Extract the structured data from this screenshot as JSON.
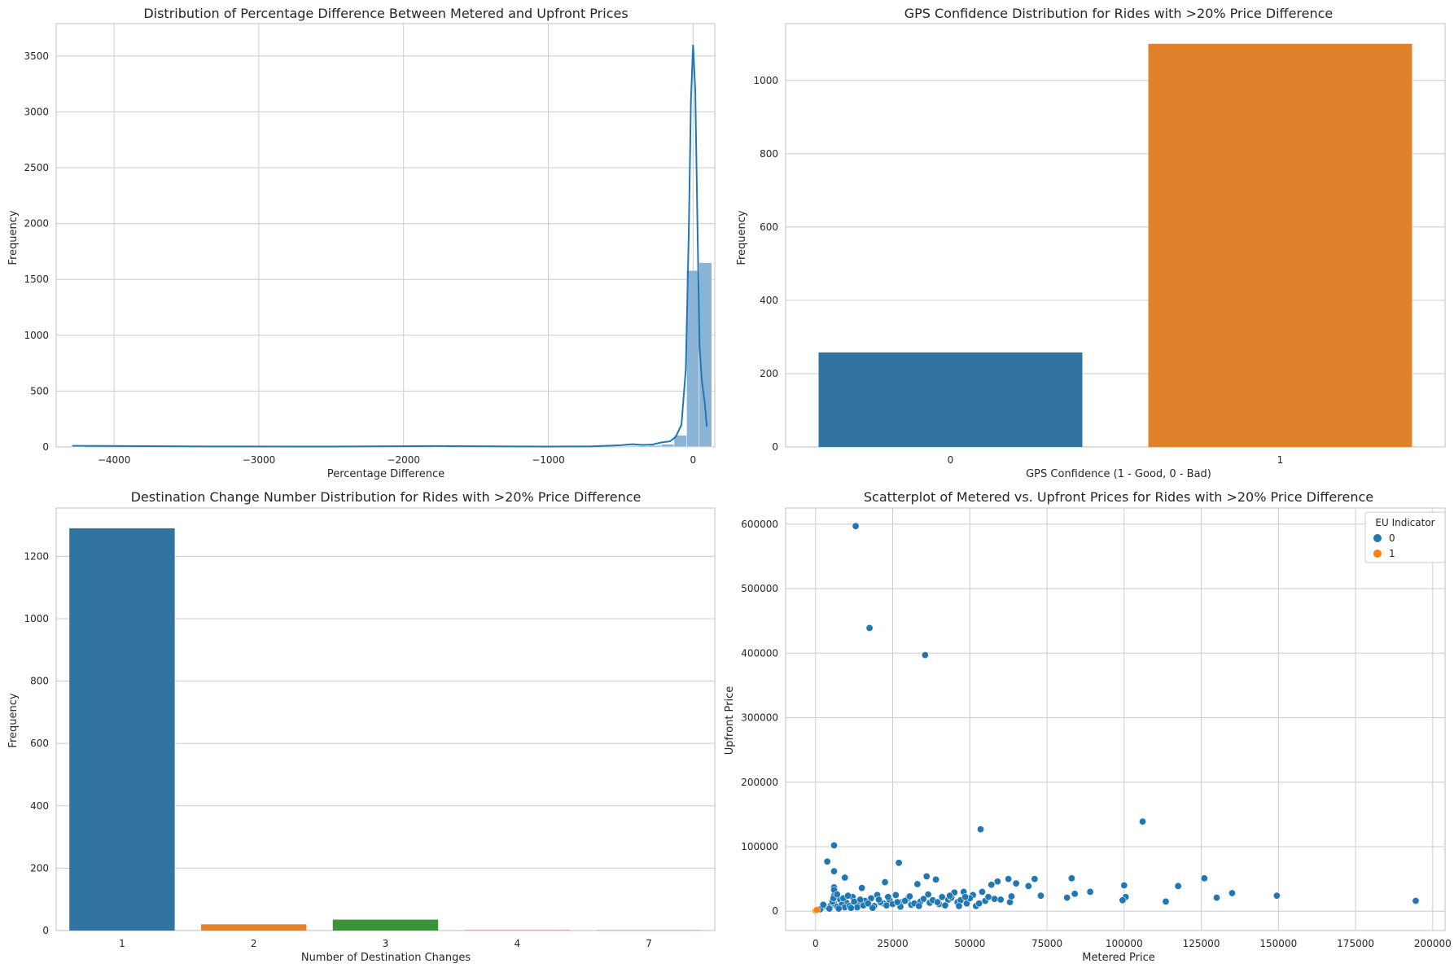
{
  "colors": {
    "blue": "#3274a1",
    "blue_dot": "#1f77b4",
    "orange": "#e1812c",
    "orange_dot": "#ff7f0e",
    "green": "#3a923a",
    "hist_fill": "#8bb3d6",
    "kde": "#1f77b4",
    "grid": "#cccccc"
  },
  "chart_data": [
    {
      "id": "hist",
      "type": "bar",
      "title": "Distribution of Percentage Difference Between Metered and Upfront Prices",
      "xlabel": "Percentage Difference",
      "ylabel": "Frequency",
      "xlim": [
        -4400,
        150
      ],
      "ylim": [
        0,
        3790
      ],
      "xticks": [
        -4000,
        -3000,
        -2000,
        -1000,
        0
      ],
      "xtick_labels": [
        "−4000",
        "−3000",
        "−2000",
        "−1000",
        "0"
      ],
      "yticks": [
        0,
        500,
        1000,
        1500,
        2000,
        2500,
        3000,
        3500
      ],
      "ytick_labels": [
        "0",
        "500",
        "1000",
        "1500",
        "2000",
        "2500",
        "3000",
        "3500"
      ],
      "bin_width": 87,
      "bins": [
        {
          "x": -4290,
          "v": 2
        },
        {
          "x": -1800,
          "v": 3
        },
        {
          "x": -900,
          "v": 4
        },
        {
          "x": -480,
          "v": 8
        },
        {
          "x": -393,
          "v": 10
        },
        {
          "x": -306,
          "v": 14
        },
        {
          "x": -219,
          "v": 25
        },
        {
          "x": -132,
          "v": 105
        },
        {
          "x": -45,
          "v": 1580
        },
        {
          "x": 42,
          "v": 1650
        }
      ],
      "kde": {
        "x": [
          -4290,
          -3500,
          -2500,
          -1800,
          -1000,
          -700,
          -500,
          -420,
          -350,
          -280,
          -220,
          -160,
          -120,
          -80,
          -50,
          -30,
          -15,
          0,
          15,
          30,
          45,
          60,
          80,
          95
        ],
        "y": [
          10,
          5,
          4,
          8,
          4,
          5,
          15,
          25,
          18,
          22,
          40,
          50,
          90,
          200,
          700,
          1900,
          3100,
          3600,
          3200,
          2000,
          900,
          600,
          400,
          180
        ]
      }
    },
    {
      "id": "gps",
      "type": "bar",
      "title": "GPS Confidence Distribution for Rides with >20% Price Difference",
      "xlabel": "GPS Confidence (1 - Good, 0 - Bad)",
      "ylabel": "Frequency",
      "ylim": [
        0,
        1155
      ],
      "yticks": [
        0,
        200,
        400,
        600,
        800,
        1000
      ],
      "ytick_labels": [
        "0",
        "200",
        "400",
        "600",
        "800",
        "1000"
      ],
      "categories": [
        "0",
        "1"
      ],
      "values": [
        258,
        1100
      ]
    },
    {
      "id": "dest",
      "type": "bar",
      "title": "Destination Change Number Distribution for Rides with >20% Price Difference",
      "xlabel": "Number of Destination Changes",
      "ylabel": "Frequency",
      "ylim": [
        0,
        1355
      ],
      "yticks": [
        0,
        200,
        400,
        600,
        800,
        1000,
        1200
      ],
      "ytick_labels": [
        "0",
        "200",
        "400",
        "600",
        "800",
        "1000",
        "1200"
      ],
      "categories": [
        "1",
        "2",
        "3",
        "4",
        "7"
      ],
      "values": [
        1290,
        20,
        35,
        1,
        1
      ]
    },
    {
      "id": "scatter",
      "type": "scatter",
      "title": "Scatterplot of Metered vs. Upfront Prices for Rides with >20% Price Difference",
      "xlabel": "Metered Price",
      "ylabel": "Upfront Price",
      "xlim": [
        -9700,
        204000
      ],
      "ylim": [
        -30000,
        625000
      ],
      "xticks": [
        0,
        25000,
        50000,
        75000,
        100000,
        125000,
        150000,
        175000,
        200000
      ],
      "xtick_labels": [
        "0",
        "25000",
        "50000",
        "75000",
        "100000",
        "125000",
        "150000",
        "175000",
        "200000"
      ],
      "yticks": [
        0,
        100000,
        200000,
        300000,
        400000,
        500000,
        600000
      ],
      "ytick_labels": [
        "0",
        "100000",
        "200000",
        "300000",
        "400000",
        "500000",
        "600000"
      ],
      "legend": {
        "title": "EU Indicator",
        "entries": [
          "0",
          "1"
        ],
        "placement": "top-right"
      },
      "series": [
        {
          "name": "0",
          "points": [
            [
              13000,
              597000
            ],
            [
              17500,
              439000
            ],
            [
              35500,
              397000
            ],
            [
              106000,
              139000
            ],
            [
              53500,
              127000
            ],
            [
              6000,
              102000
            ],
            [
              3800,
              77000
            ],
            [
              27000,
              75000
            ],
            [
              6000,
              62000
            ],
            [
              9500,
              52000
            ],
            [
              36000,
              54000
            ],
            [
              22500,
              45000
            ],
            [
              39000,
              49000
            ],
            [
              33000,
              42000
            ],
            [
              62500,
              50000
            ],
            [
              71000,
              50000
            ],
            [
              59000,
              46000
            ],
            [
              57000,
              41000
            ],
            [
              65000,
              43000
            ],
            [
              83000,
              51000
            ],
            [
              126000,
              51000
            ],
            [
              100000,
              40000
            ],
            [
              117500,
              39000
            ],
            [
              69000,
              39000
            ],
            [
              6000,
              37000
            ],
            [
              6500,
              29000
            ],
            [
              15000,
              36000
            ],
            [
              48000,
              30000
            ],
            [
              54000,
              30000
            ],
            [
              89000,
              30000
            ],
            [
              84000,
              27000
            ],
            [
              135000,
              28000
            ],
            [
              73000,
              24000
            ],
            [
              149500,
              24000
            ],
            [
              100500,
              22000
            ],
            [
              81500,
              21000
            ],
            [
              130000,
              21000
            ],
            [
              99500,
              17000
            ],
            [
              113500,
              15000
            ],
            [
              194500,
              16000
            ],
            [
              63000,
              14000
            ],
            [
              63500,
              23000
            ],
            [
              45000,
              29000
            ],
            [
              51000,
              25000
            ],
            [
              58000,
              19000
            ],
            [
              41000,
              22000
            ],
            [
              30000,
              20000
            ],
            [
              26000,
              25000
            ],
            [
              20000,
              25000
            ],
            [
              18000,
              20000
            ],
            [
              12000,
              22000
            ],
            [
              8000,
              18000
            ],
            [
              10000,
              13000
            ],
            [
              14000,
              11000
            ],
            [
              16000,
              16000
            ],
            [
              22000,
              12000
            ],
            [
              24000,
              17000
            ],
            [
              28000,
              14000
            ],
            [
              31000,
              10000
            ],
            [
              34000,
              15000
            ],
            [
              37000,
              13000
            ],
            [
              40000,
              11000
            ],
            [
              43000,
              18000
            ],
            [
              46000,
              14000
            ],
            [
              49000,
              12000
            ],
            [
              52000,
              8000
            ],
            [
              55000,
              16000
            ],
            [
              60000,
              18000
            ],
            [
              2000,
              5000
            ],
            [
              3000,
              8000
            ],
            [
              4000,
              6000
            ],
            [
              5000,
              9000
            ],
            [
              6000,
              12000
            ],
            [
              7000,
              7000
            ],
            [
              8500,
              10000
            ],
            [
              9500,
              6000
            ],
            [
              11000,
              8000
            ],
            [
              12500,
              15000
            ],
            [
              13500,
              6000
            ],
            [
              15500,
              9000
            ],
            [
              17000,
              12000
            ],
            [
              19000,
              8000
            ],
            [
              21000,
              14000
            ],
            [
              23000,
              9000
            ],
            [
              25000,
              11000
            ],
            [
              27500,
              7000
            ],
            [
              29000,
              16000
            ],
            [
              32000,
              12000
            ],
            [
              35000,
              19000
            ],
            [
              38000,
              17000
            ],
            [
              42000,
              9000
            ],
            [
              44000,
              21000
            ],
            [
              47000,
              17000
            ],
            [
              50000,
              20000
            ],
            [
              56000,
              22000
            ],
            [
              1500,
              3000
            ],
            [
              2500,
              10000
            ],
            [
              4500,
              4000
            ],
            [
              5500,
              15000
            ],
            [
              7500,
              4000
            ],
            [
              9000,
              20000
            ],
            [
              11500,
              5000
            ],
            [
              14500,
              18000
            ],
            [
              18500,
              5000
            ],
            [
              20500,
              18000
            ],
            [
              23500,
              22000
            ],
            [
              26500,
              14000
            ],
            [
              30500,
              23000
            ],
            [
              33500,
              8000
            ],
            [
              36500,
              26000
            ],
            [
              39500,
              14000
            ],
            [
              43500,
              24000
            ],
            [
              46500,
              8000
            ],
            [
              48500,
              22000
            ],
            [
              53000,
              12000
            ],
            [
              6000,
              24000
            ],
            [
              6000,
              33000
            ],
            [
              5800,
              20000
            ],
            [
              7000,
              26000
            ],
            [
              10500,
              24000
            ]
          ]
        },
        {
          "name": "1",
          "points": [
            [
              0,
              1000
            ],
            [
              400,
              2000
            ]
          ]
        }
      ]
    }
  ]
}
